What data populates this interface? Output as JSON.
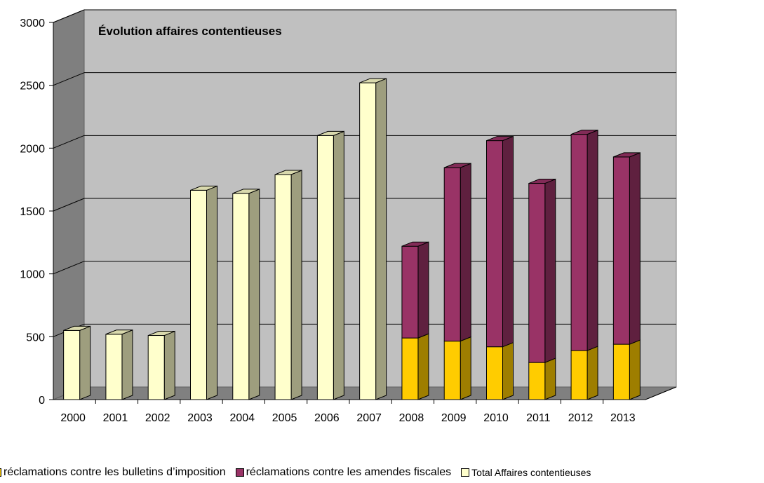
{
  "chart_data": {
    "type": "bar",
    "stacked": true,
    "three_d": true,
    "title": "Évolution affaires contentieuses",
    "categories": [
      "2000",
      "2001",
      "2002",
      "2003",
      "2004",
      "2005",
      "2006",
      "2007",
      "2008",
      "2009",
      "2010",
      "2011",
      "2012",
      "2013"
    ],
    "ylim": [
      0,
      3000
    ],
    "yticks": [
      0,
      500,
      1000,
      1500,
      2000,
      2500,
      3000
    ],
    "grid": true,
    "legend_position": "bottom",
    "series": [
      {
        "name": "réclamations contre les bulletins d’imposition",
        "color": "#FFCC00",
        "values": [
          null,
          null,
          null,
          null,
          null,
          null,
          null,
          null,
          490,
          465,
          420,
          295,
          390,
          440
        ]
      },
      {
        "name": "réclamations contre les amendes fiscales",
        "color": "#993366",
        "values": [
          null,
          null,
          null,
          null,
          null,
          null,
          null,
          null,
          730,
          1380,
          1640,
          1425,
          1720,
          1490
        ]
      },
      {
        "name": "Total Affaires contentieuses",
        "color": "#FFFFCC",
        "values": [
          550,
          520,
          510,
          1665,
          1640,
          1790,
          2100,
          2520,
          null,
          null,
          null,
          null,
          null,
          null
        ]
      }
    ],
    "legend": [
      {
        "label": "réclamations contre les bulletins d’imposition",
        "color": "#FFCC00"
      },
      {
        "label": "réclamations contre les amendes fiscales",
        "color": "#993366"
      },
      {
        "label": "Total Affaires contentieuses",
        "color": "#FFFFCC"
      }
    ]
  }
}
